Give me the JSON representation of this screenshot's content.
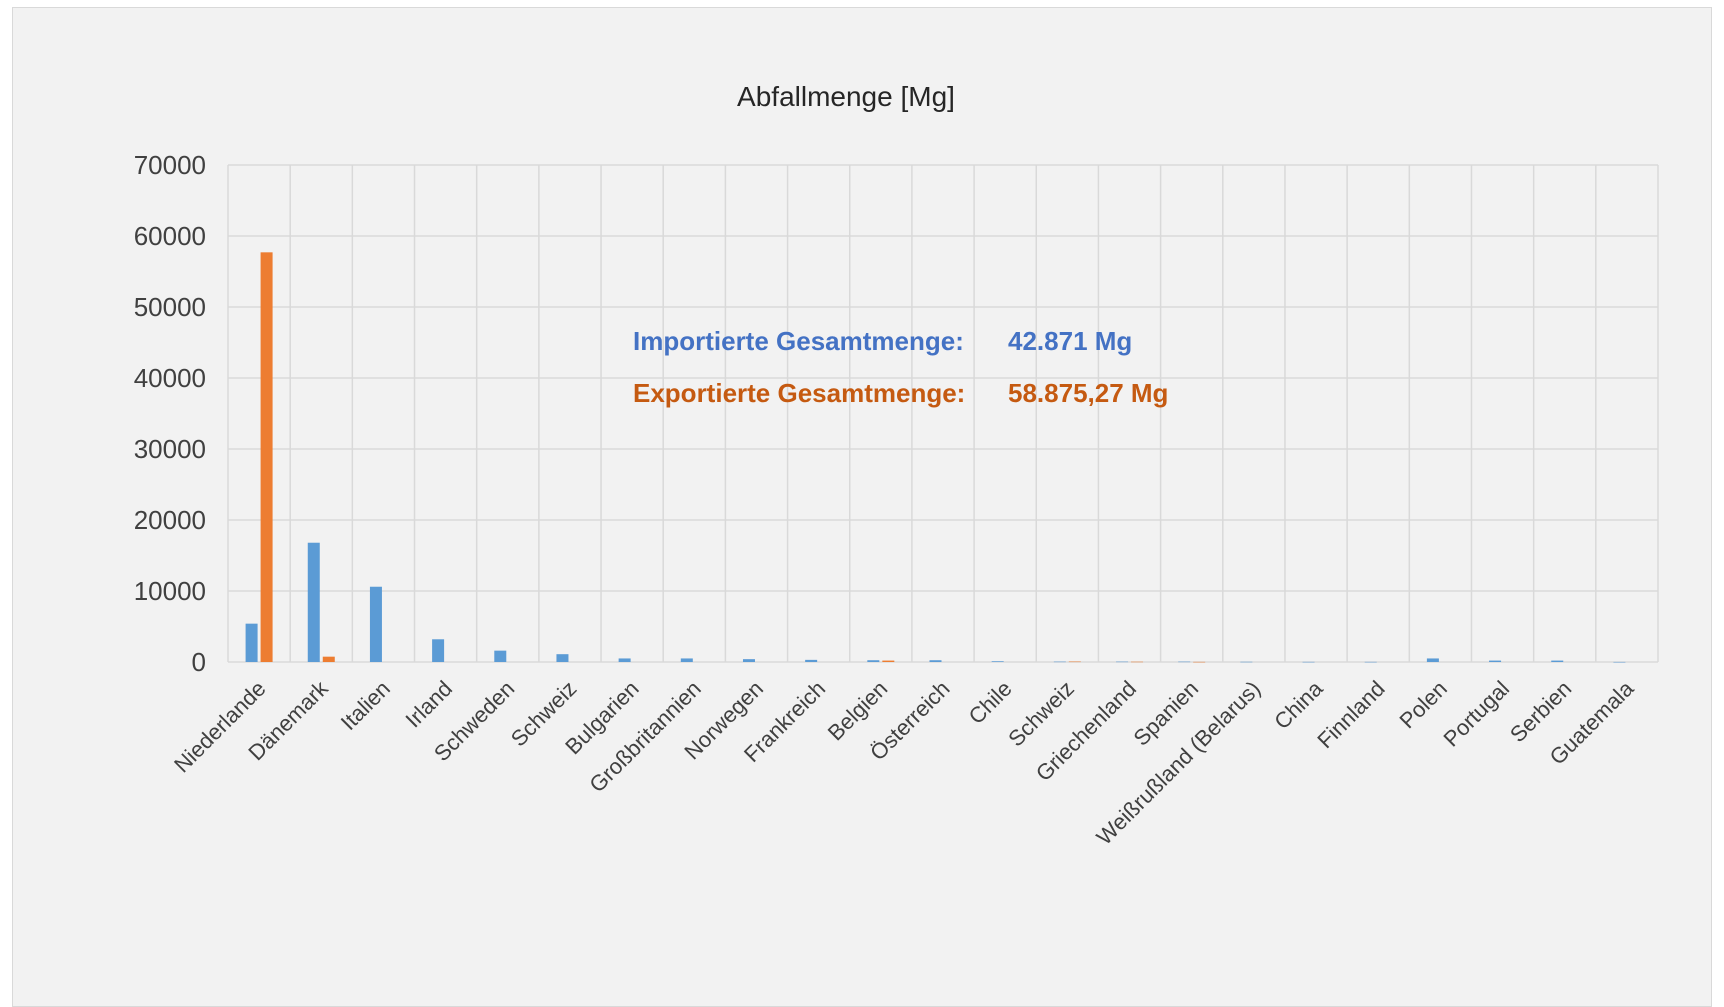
{
  "chart_data": {
    "type": "bar",
    "title": "Abfallmenge [Mg]",
    "xlabel": "",
    "ylabel": "",
    "ylim": [
      0,
      70000
    ],
    "yticks": [
      0,
      10000,
      20000,
      30000,
      40000,
      50000,
      60000,
      70000
    ],
    "grid": true,
    "categories": [
      "Niederlande",
      "Dänemark",
      "Italien",
      "Irland",
      "Schweden",
      "Schweiz",
      "Bulgarien",
      "Großbritannien",
      "Norwegen",
      "Frankreich",
      "Belgien",
      "Österreich",
      "Chile",
      "Schweiz",
      "Griechenland",
      "Spanien",
      "Weißrußland (Belarus)",
      "China",
      "Finnland",
      "Polen",
      "Portugal",
      "Serbien",
      "Guatemala"
    ],
    "series": [
      {
        "color": "#5b9bd5",
        "values": [
          5400,
          16800,
          10600,
          3200,
          1600,
          1100,
          500,
          500,
          400,
          300,
          250,
          250,
          100,
          50,
          50,
          50,
          30,
          20,
          20,
          500,
          200,
          200,
          10
        ]
      },
      {
        "color": "#ed7d31",
        "values": [
          57700,
          750,
          0,
          0,
          0,
          0,
          0,
          0,
          0,
          0,
          200,
          0,
          0,
          60,
          40,
          20,
          0,
          0,
          0,
          0,
          0,
          0,
          0
        ]
      }
    ],
    "annotations": [
      {
        "label": "Importierte Gesamtmenge:",
        "value": "42.871 Mg",
        "color": "#4472c4"
      },
      {
        "label": "Exportierte Gesamtmenge:",
        "value": "58.875,27 Mg",
        "color": "#c55a11"
      }
    ]
  }
}
